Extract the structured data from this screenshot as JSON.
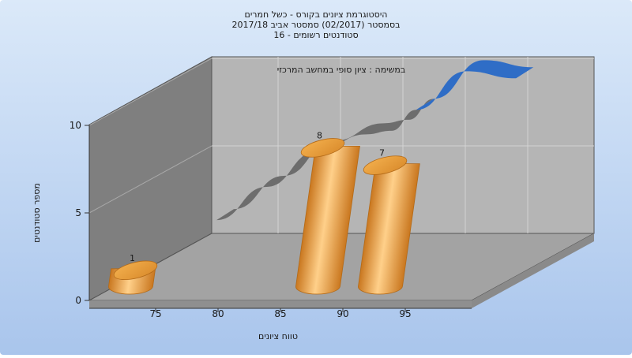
{
  "chart_data": {
    "type": "bar",
    "title_lines": [
      "היסטוגרמת ציונים בקורס - כשל חמרים",
      "בסמסטר  (02/2017)  סמסטר אביב 2017/18",
      "סטודנטים רשומים - 16"
    ],
    "subtitle": "במשימה : ציון סופי במחשב המרכזי",
    "xlabel": "טווח ציונים",
    "ylabel": "מספר סטודנטים",
    "x_ticks": [
      "75",
      "80",
      "85",
      "90",
      "95"
    ],
    "y_ticks": [
      "0",
      "5",
      "10"
    ],
    "ylim": [
      0,
      10
    ],
    "bars": [
      {
        "category": "75",
        "value": 1,
        "label": "1"
      },
      {
        "category": "90",
        "value": 8,
        "label": "8"
      },
      {
        "category": "95",
        "value": 7,
        "label": "7"
      }
    ],
    "curve": {
      "description_x": [
        76,
        80,
        84,
        88,
        90,
        92,
        96,
        100
      ],
      "y": [
        2.1,
        4.0,
        6.0,
        7.0,
        7.2,
        8.4,
        10.6,
        10.2
      ]
    },
    "colors": {
      "background_top": "#dbe9f9",
      "background_bottom": "#a9c5ec",
      "wall_left": "#7f7f7f",
      "wall_back": "#b5b5b5",
      "floor": "#a3a3a3",
      "bar": "#f0a23a",
      "curve": "#2f6dc6",
      "curve_shadow": "#6d6d6d"
    }
  }
}
